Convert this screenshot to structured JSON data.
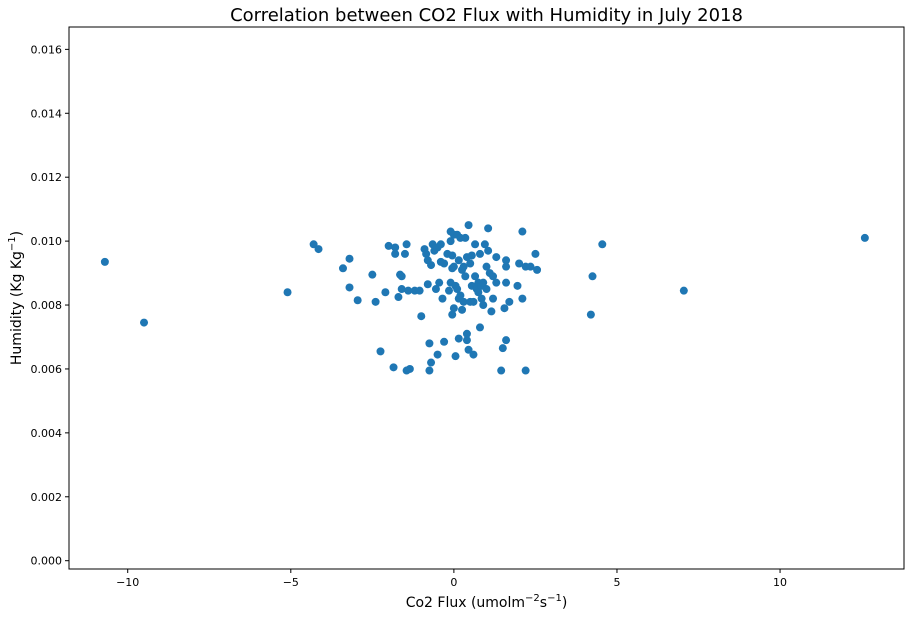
{
  "chart_data": {
    "type": "scatter",
    "title": "Correlation between CO2 Flux with Humidity in July 2018",
    "xlabel": {
      "main": "Co2 Flux (umolm",
      "sup1": "−2",
      "mid": "s",
      "sup2": "−1",
      "end": ")"
    },
    "ylabel": {
      "main": "Humidity (Kg Kg",
      "sup": "−1",
      "end": ")"
    },
    "xlim": [
      -11.8,
      13.8
    ],
    "ylim": [
      -0.00026,
      0.0167
    ],
    "xticks": [
      -10,
      -5,
      0,
      5,
      10
    ],
    "xtick_labels": [
      "−10",
      "−5",
      "0",
      "5",
      "10"
    ],
    "yticks": [
      0.0,
      0.002,
      0.004,
      0.006,
      0.008,
      0.01,
      0.012,
      0.014,
      0.016
    ],
    "ytick_labels": [
      "0.000",
      "0.002",
      "0.004",
      "0.006",
      "0.008",
      "0.010",
      "0.012",
      "0.014",
      "0.016"
    ],
    "color": "#1f77b4",
    "points": [
      [
        -10.7,
        0.00935
      ],
      [
        -9.5,
        0.00745
      ],
      [
        -5.1,
        0.0084
      ],
      [
        -4.3,
        0.0099
      ],
      [
        -4.15,
        0.00975
      ],
      [
        -3.4,
        0.00915
      ],
      [
        -3.2,
        0.00945
      ],
      [
        -3.2,
        0.00855
      ],
      [
        -2.95,
        0.00815
      ],
      [
        -2.5,
        0.00895
      ],
      [
        -2.4,
        0.0081
      ],
      [
        -2.25,
        0.00655
      ],
      [
        -2.1,
        0.0084
      ],
      [
        -2.0,
        0.00985
      ],
      [
        -1.8,
        0.0098
      ],
      [
        -1.8,
        0.0096
      ],
      [
        -1.85,
        0.00605
      ],
      [
        -1.65,
        0.00895
      ],
      [
        -1.6,
        0.0089
      ],
      [
        -1.6,
        0.0085
      ],
      [
        -1.7,
        0.00825
      ],
      [
        -1.5,
        0.0096
      ],
      [
        -1.45,
        0.0099
      ],
      [
        -1.4,
        0.00845
      ],
      [
        -1.35,
        0.006
      ],
      [
        -1.45,
        0.00595
      ],
      [
        -1.2,
        0.00845
      ],
      [
        -1.05,
        0.00845
      ],
      [
        -1.0,
        0.00765
      ],
      [
        -0.9,
        0.00975
      ],
      [
        -0.85,
        0.0096
      ],
      [
        -0.8,
        0.0094
      ],
      [
        -0.8,
        0.00865
      ],
      [
        -0.75,
        0.0068
      ],
      [
        -0.75,
        0.00595
      ],
      [
        -0.7,
        0.0062
      ],
      [
        -0.7,
        0.00925
      ],
      [
        -0.65,
        0.0099
      ],
      [
        -0.6,
        0.0097
      ],
      [
        -0.55,
        0.0085
      ],
      [
        -0.5,
        0.0098
      ],
      [
        -0.45,
        0.0087
      ],
      [
        -0.5,
        0.00645
      ],
      [
        -0.4,
        0.0099
      ],
      [
        -0.4,
        0.00935
      ],
      [
        -0.35,
        0.0082
      ],
      [
        -0.3,
        0.00685
      ],
      [
        -0.3,
        0.0093
      ],
      [
        -0.2,
        0.0096
      ],
      [
        -0.15,
        0.00845
      ],
      [
        -0.1,
        0.0087
      ],
      [
        -0.1,
        0.0103
      ],
      [
        -0.1,
        0.01
      ],
      [
        -0.05,
        0.00955
      ],
      [
        -0.05,
        0.00915
      ],
      [
        0.0,
        0.0102
      ],
      [
        0.0,
        0.0092
      ],
      [
        0.0,
        0.0079
      ],
      [
        -0.05,
        0.0077
      ],
      [
        0.05,
        0.0064
      ],
      [
        0.05,
        0.0086
      ],
      [
        0.1,
        0.0085
      ],
      [
        0.1,
        0.0102
      ],
      [
        0.15,
        0.00695
      ],
      [
        0.15,
        0.0094
      ],
      [
        0.15,
        0.0082
      ],
      [
        0.2,
        0.0083
      ],
      [
        0.2,
        0.0101
      ],
      [
        0.25,
        0.00785
      ],
      [
        0.25,
        0.0091
      ],
      [
        0.3,
        0.0092
      ],
      [
        0.3,
        0.0081
      ],
      [
        0.35,
        0.0089
      ],
      [
        0.35,
        0.0101
      ],
      [
        0.4,
        0.0095
      ],
      [
        0.4,
        0.0069
      ],
      [
        0.4,
        0.0071
      ],
      [
        0.45,
        0.0105
      ],
      [
        0.45,
        0.0066
      ],
      [
        0.5,
        0.0093
      ],
      [
        0.5,
        0.0081
      ],
      [
        0.55,
        0.00955
      ],
      [
        0.55,
        0.0086
      ],
      [
        0.6,
        0.0081
      ],
      [
        0.6,
        0.00645
      ],
      [
        0.65,
        0.0099
      ],
      [
        0.65,
        0.0089
      ],
      [
        0.7,
        0.0086
      ],
      [
        0.7,
        0.0085
      ],
      [
        0.75,
        0.0087
      ],
      [
        0.75,
        0.0084
      ],
      [
        0.8,
        0.0073
      ],
      [
        0.8,
        0.0096
      ],
      [
        0.85,
        0.0082
      ],
      [
        0.85,
        0.0086
      ],
      [
        0.9,
        0.0087
      ],
      [
        0.9,
        0.008
      ],
      [
        0.95,
        0.0099
      ],
      [
        1.0,
        0.0085
      ],
      [
        1.0,
        0.0092
      ],
      [
        1.05,
        0.0097
      ],
      [
        1.05,
        0.0104
      ],
      [
        1.1,
        0.009
      ],
      [
        1.15,
        0.0078
      ],
      [
        1.2,
        0.0082
      ],
      [
        1.2,
        0.0089
      ],
      [
        1.3,
        0.0095
      ],
      [
        1.3,
        0.0087
      ],
      [
        1.45,
        0.00595
      ],
      [
        1.5,
        0.00665
      ],
      [
        1.55,
        0.0079
      ],
      [
        1.6,
        0.0094
      ],
      [
        1.6,
        0.0069
      ],
      [
        1.6,
        0.0092
      ],
      [
        1.6,
        0.0087
      ],
      [
        1.7,
        0.0081
      ],
      [
        1.95,
        0.0086
      ],
      [
        2.0,
        0.0093
      ],
      [
        2.1,
        0.0103
      ],
      [
        2.1,
        0.0082
      ],
      [
        2.2,
        0.0092
      ],
      [
        2.2,
        0.00595
      ],
      [
        2.35,
        0.0092
      ],
      [
        2.5,
        0.0096
      ],
      [
        2.55,
        0.0091
      ],
      [
        4.2,
        0.0077
      ],
      [
        4.25,
        0.0089
      ],
      [
        4.55,
        0.0099
      ],
      [
        7.05,
        0.00845
      ],
      [
        12.6,
        0.0101
      ]
    ]
  }
}
